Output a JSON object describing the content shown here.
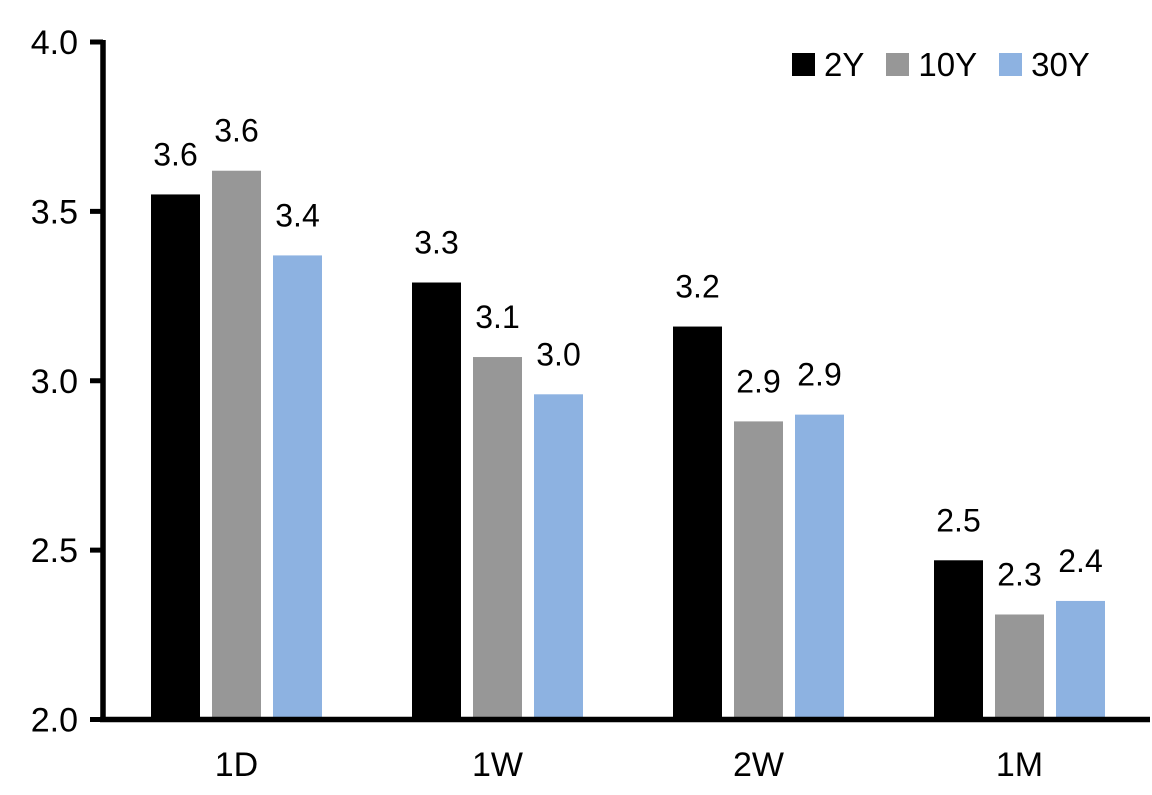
{
  "chart_data": {
    "type": "bar",
    "title": "",
    "xlabel": "",
    "ylabel": "",
    "categories": [
      "1D",
      "1W",
      "2W",
      "1M"
    ],
    "series": [
      {
        "name": "2Y",
        "color": "#000000",
        "values": [
          3.55,
          3.29,
          3.16,
          2.47
        ],
        "labels": [
          "3.6",
          "3.3",
          "3.2",
          "2.5"
        ]
      },
      {
        "name": "10Y",
        "color": "#979797",
        "values": [
          3.62,
          3.07,
          2.88,
          2.31
        ],
        "labels": [
          "3.6",
          "3.1",
          "2.9",
          "2.3"
        ]
      },
      {
        "name": "30Y",
        "color": "#8DB2E1",
        "values": [
          3.37,
          2.96,
          2.9,
          2.35
        ],
        "labels": [
          "3.4",
          "3.0",
          "2.9",
          "2.4"
        ]
      }
    ],
    "ylim": [
      2.0,
      4.0
    ],
    "yticks": [
      {
        "value": 2.0,
        "label": "2.0"
      },
      {
        "value": 2.5,
        "label": "2.5"
      },
      {
        "value": 3.0,
        "label": "3.0"
      },
      {
        "value": 3.5,
        "label": "3.5"
      },
      {
        "value": 4.0,
        "label": "4.0"
      }
    ],
    "grid": false,
    "legend_position": "top-right",
    "axis_color": "#000000",
    "background_color": "#FFFFFF"
  }
}
